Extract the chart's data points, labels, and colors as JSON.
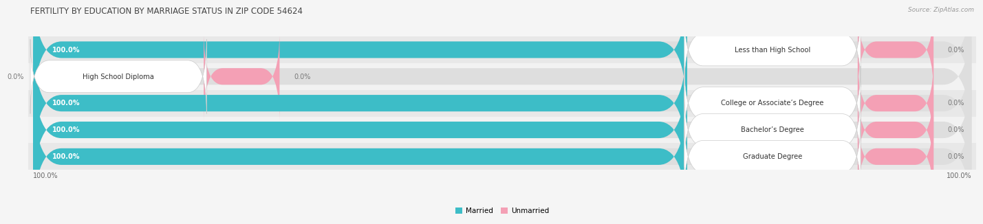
{
  "title": "FERTILITY BY EDUCATION BY MARRIAGE STATUS IN ZIP CODE 54624",
  "source": "Source: ZipAtlas.com",
  "categories": [
    "Less than High School",
    "High School Diploma",
    "College or Associate’s Degree",
    "Bachelor’s Degree",
    "Graduate Degree"
  ],
  "married_values": [
    100.0,
    0.0,
    100.0,
    100.0,
    100.0
  ],
  "unmarried_values": [
    0.0,
    0.0,
    0.0,
    0.0,
    0.0
  ],
  "married_color": "#3DBDC7",
  "married_color_light": "#8DD5DA",
  "unmarried_color": "#F4A0B5",
  "row_colors": [
    "#E8E8E8",
    "#F2F2F2"
  ],
  "bar_bg_color": "#DEDEDE",
  "background_color": "#F5F5F5",
  "title_fontsize": 8.5,
  "label_fontsize": 7.0,
  "category_fontsize": 7.2,
  "source_fontsize": 6.5,
  "legend_fontsize": 7.5,
  "x_left_label": "100.0%",
  "x_right_label": "100.0%"
}
